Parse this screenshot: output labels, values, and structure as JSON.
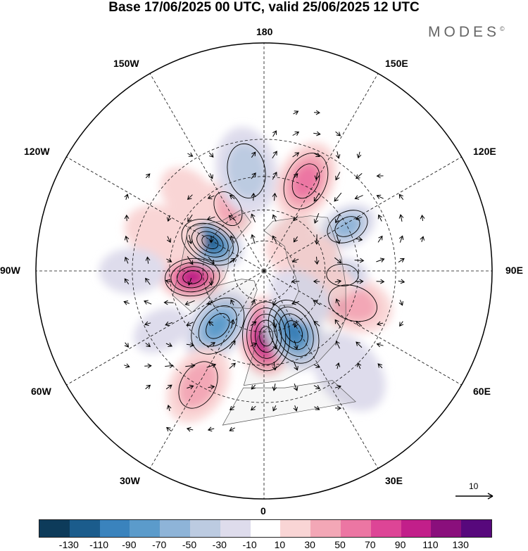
{
  "header": {
    "title": "Base 17/06/2025 00 UTC, valid 25/06/2025 12 UTC",
    "brand": "MODES",
    "brand_mark": "©"
  },
  "map": {
    "projection": "north-polar-stereographic",
    "longitude_labels": {
      "top": "180",
      "bottom": "0",
      "left": "90W",
      "right": "90E",
      "upper_left_150": "150W",
      "upper_right_150": "150E",
      "upper_left_120": "120W",
      "upper_right_120": "120E",
      "lower_left_60": "60W",
      "lower_right_60": "60E",
      "lower_left_30": "30W",
      "lower_right_30": "30E"
    },
    "wind_scale_value": "10",
    "anomaly_cells": [
      {
        "lon": 2,
        "lat": 58,
        "value": 115,
        "r": 55
      },
      {
        "lon": 26,
        "lat": 57,
        "value": -105,
        "r": 55
      },
      {
        "lon": -40,
        "lat": 55,
        "value": -85,
        "r": 55
      },
      {
        "lon": -85,
        "lat": 55,
        "value": 95,
        "r": 45
      },
      {
        "lon": -118,
        "lat": 60,
        "value": -115,
        "r": 48
      },
      {
        "lon": -150,
        "lat": 55,
        "value": 45,
        "r": 40
      },
      {
        "lon": 155,
        "lat": 43,
        "value": 55,
        "r": 55
      },
      {
        "lon": -170,
        "lat": 42,
        "value": -30,
        "r": 60
      },
      {
        "lon": 118,
        "lat": 45,
        "value": -60,
        "r": 40
      },
      {
        "lon": 70,
        "lat": 45,
        "value": 45,
        "r": 55
      },
      {
        "lon": 87,
        "lat": 52,
        "value": -30,
        "r": 35
      },
      {
        "lon": 107,
        "lat": 68,
        "value": 20,
        "r": 45
      },
      {
        "lon": 80,
        "lat": 60,
        "value": 25,
        "r": 40
      },
      {
        "lon": -60,
        "lat": 35,
        "value": -25,
        "r": 40
      },
      {
        "lon": -30,
        "lat": 30,
        "value": 35,
        "r": 55
      },
      {
        "lon": 40,
        "lat": 30,
        "value": -15,
        "r": 60
      },
      {
        "lon": -110,
        "lat": 40,
        "value": 25,
        "r": 55
      },
      {
        "lon": -135,
        "lat": 40,
        "value": 20,
        "r": 45
      },
      {
        "lon": 140,
        "lat": 70,
        "value": 20,
        "r": 40
      },
      {
        "lon": 55,
        "lat": 68,
        "value": -15,
        "r": 45
      },
      {
        "lon": -90,
        "lat": 30,
        "value": -15,
        "r": 45
      }
    ]
  },
  "colorbar": {
    "colors": [
      "#0d3b5a",
      "#1b5c8c",
      "#3a83bd",
      "#5b9bcb",
      "#8eb4d8",
      "#bccbe1",
      "#dedcec",
      "#ffffff",
      "#f9d5d5",
      "#f3a7b6",
      "#ec76a3",
      "#dd4596",
      "#c21f8a",
      "#8a0f7c",
      "#57087c"
    ],
    "tick_labels": [
      "-130",
      "-110",
      "-90",
      "-70",
      "-50",
      "-30",
      "-10",
      "10",
      "30",
      "50",
      "70",
      "90",
      "110",
      "130"
    ]
  }
}
